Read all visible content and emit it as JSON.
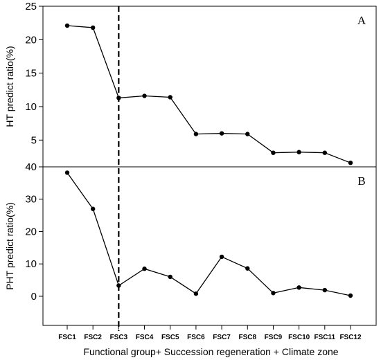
{
  "chart_data": {
    "type": "line",
    "categories": [
      "FSC1",
      "FSC2",
      "FSC3",
      "FSC4",
      "FSC5",
      "FSC6",
      "FSC7",
      "FSC8",
      "FSC9",
      "FSC10",
      "FSC11",
      "FSC12"
    ],
    "xlabel": "Functional group+ Succession regeneration + Climate zone",
    "panels": [
      {
        "letter": "A",
        "ylabel": "HT predict ratio(%)",
        "ylim": [
          1,
          25
        ],
        "yticks": [
          5,
          10,
          15,
          20,
          25
        ],
        "values": [
          22.1,
          21.8,
          11.3,
          11.6,
          11.4,
          5.9,
          6.0,
          5.9,
          3.1,
          3.2,
          3.1,
          1.6
        ]
      },
      {
        "letter": "B",
        "ylabel": "PHT predict ratio(%)",
        "ylim": [
          -9,
          40
        ],
        "yticks": [
          0,
          10,
          20,
          30,
          40
        ],
        "values": [
          38.2,
          27.0,
          3.3,
          8.5,
          6.0,
          0.8,
          12.2,
          8.6,
          1.0,
          2.7,
          1.9,
          0.2
        ]
      }
    ],
    "divider_after_category": "FSC3",
    "grid": false,
    "legend": "none"
  }
}
